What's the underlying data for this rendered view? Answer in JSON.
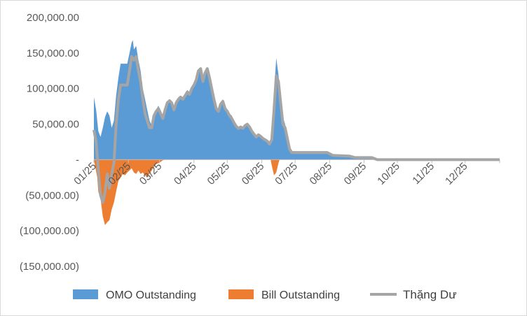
{
  "chart_data": {
    "type": "area",
    "title": "",
    "xlabel": "",
    "ylabel": "",
    "ylim": [
      -150000,
      200000
    ],
    "yticks": [
      200000,
      150000,
      100000,
      50000,
      0,
      -50000,
      -100000,
      -150000
    ],
    "ytick_labels": [
      "200,000.00",
      "150,000.00",
      "100,000.00",
      "50,000.00",
      "-",
      "(50,000.00)",
      "(100,000.00)",
      "(150,000.00)"
    ],
    "x_unit": "day_of_year_2025",
    "x_range": [
      0,
      365
    ],
    "xtick_positions": [
      0,
      31,
      59,
      90,
      120,
      151,
      181,
      212,
      243,
      273,
      304,
      334
    ],
    "xtick_labels": [
      "01/25",
      "02/25",
      "03/25",
      "04/25",
      "05/25",
      "06/25",
      "07/25",
      "08/25",
      "09/25",
      "10/25",
      "11/25",
      "12/25"
    ],
    "grid": false,
    "legend": "bottom",
    "series": [
      {
        "name": "OMO Outstanding",
        "kind": "area",
        "color": "#5b9bd5",
        "points": [
          [
            0,
            88000
          ],
          [
            2,
            70000
          ],
          [
            4,
            40000
          ],
          [
            6,
            32000
          ],
          [
            8,
            45000
          ],
          [
            10,
            60000
          ],
          [
            12,
            68000
          ],
          [
            14,
            62000
          ],
          [
            16,
            45000
          ],
          [
            18,
            55000
          ],
          [
            20,
            90000
          ],
          [
            22,
            115000
          ],
          [
            24,
            135000
          ],
          [
            27,
            135000
          ],
          [
            30,
            135000
          ],
          [
            32,
            150000
          ],
          [
            34,
            165000
          ],
          [
            35,
            168000
          ],
          [
            36,
            155000
          ],
          [
            38,
            160000
          ],
          [
            40,
            140000
          ],
          [
            42,
            125000
          ],
          [
            44,
            100000
          ],
          [
            46,
            85000
          ],
          [
            48,
            70000
          ],
          [
            50,
            55000
          ],
          [
            52,
            48000
          ],
          [
            54,
            62000
          ],
          [
            56,
            70000
          ],
          [
            58,
            76000
          ],
          [
            60,
            68000
          ],
          [
            62,
            60000
          ],
          [
            64,
            72000
          ],
          [
            66,
            80000
          ],
          [
            68,
            85000
          ],
          [
            70,
            80000
          ],
          [
            72,
            70000
          ],
          [
            74,
            80000
          ],
          [
            76,
            88000
          ],
          [
            78,
            90000
          ],
          [
            80,
            88000
          ],
          [
            82,
            92000
          ],
          [
            84,
            98000
          ],
          [
            86,
            95000
          ],
          [
            88,
            100000
          ],
          [
            90,
            105000
          ],
          [
            92,
            112000
          ],
          [
            94,
            125000
          ],
          [
            96,
            130000
          ],
          [
            98,
            112000
          ],
          [
            100,
            125000
          ],
          [
            102,
            130000
          ],
          [
            104,
            120000
          ],
          [
            106,
            105000
          ],
          [
            108,
            90000
          ],
          [
            110,
            75000
          ],
          [
            112,
            70000
          ],
          [
            114,
            80000
          ],
          [
            116,
            85000
          ],
          [
            118,
            75000
          ],
          [
            120,
            70000
          ],
          [
            122,
            65000
          ],
          [
            124,
            62000
          ],
          [
            126,
            55000
          ],
          [
            128,
            48000
          ],
          [
            130,
            45000
          ],
          [
            132,
            48000
          ],
          [
            134,
            45000
          ],
          [
            136,
            50000
          ],
          [
            138,
            52000
          ],
          [
            140,
            48000
          ],
          [
            142,
            42000
          ],
          [
            144,
            38000
          ],
          [
            146,
            34000
          ],
          [
            148,
            36000
          ],
          [
            150,
            35000
          ],
          [
            152,
            32000
          ],
          [
            154,
            30000
          ],
          [
            156,
            28000
          ],
          [
            158,
            25000
          ],
          [
            160,
            30000
          ],
          [
            162,
            95000
          ],
          [
            164,
            143000
          ],
          [
            166,
            120000
          ],
          [
            168,
            90000
          ],
          [
            170,
            60000
          ],
          [
            172,
            50000
          ],
          [
            174,
            35000
          ],
          [
            176,
            20000
          ],
          [
            178,
            12000
          ],
          [
            185,
            12000
          ],
          [
            200,
            12000
          ],
          [
            210,
            12000
          ],
          [
            215,
            7000
          ],
          [
            230,
            6000
          ],
          [
            235,
            4000
          ],
          [
            250,
            4000
          ],
          [
            255,
            1000
          ],
          [
            365,
            1000
          ]
        ]
      },
      {
        "name": "Bill Outstanding",
        "kind": "area",
        "color": "#ed7d31",
        "points": [
          [
            0,
            0
          ],
          [
            3,
            -25000
          ],
          [
            4,
            -45000
          ],
          [
            6,
            -55000
          ],
          [
            8,
            -80000
          ],
          [
            10,
            -92000
          ],
          [
            12,
            -88000
          ],
          [
            14,
            -85000
          ],
          [
            16,
            -70000
          ],
          [
            18,
            -60000
          ],
          [
            20,
            -45000
          ],
          [
            22,
            -30000
          ],
          [
            24,
            -25000
          ],
          [
            26,
            -20000
          ],
          [
            28,
            -22000
          ],
          [
            30,
            -18000
          ],
          [
            32,
            -15000
          ],
          [
            34,
            -12000
          ],
          [
            36,
            -18000
          ],
          [
            38,
            -20000
          ],
          [
            40,
            -15000
          ],
          [
            42,
            -20000
          ],
          [
            44,
            -18000
          ],
          [
            46,
            -22000
          ],
          [
            48,
            -25000
          ],
          [
            50,
            -20000
          ],
          [
            52,
            -15000
          ],
          [
            54,
            -10000
          ],
          [
            56,
            -6000
          ],
          [
            58,
            -5000
          ],
          [
            60,
            -3000
          ],
          [
            62,
            -1000
          ],
          [
            64,
            0
          ],
          [
            159,
            0
          ],
          [
            160,
            -8000
          ],
          [
            162,
            -22000
          ],
          [
            164,
            -18000
          ],
          [
            166,
            -5000
          ],
          [
            167,
            0
          ],
          [
            365,
            0
          ]
        ]
      },
      {
        "name": "Thặng Dư",
        "kind": "line",
        "color": "#a5a5a5",
        "points": [
          [
            0,
            42000
          ],
          [
            2,
            25000
          ],
          [
            4,
            -15000
          ],
          [
            6,
            -50000
          ],
          [
            8,
            -60000
          ],
          [
            10,
            -45000
          ],
          [
            12,
            -20000
          ],
          [
            14,
            -40000
          ],
          [
            16,
            -20000
          ],
          [
            18,
            -5000
          ],
          [
            20,
            50000
          ],
          [
            22,
            85000
          ],
          [
            24,
            105000
          ],
          [
            26,
            105000
          ],
          [
            28,
            105000
          ],
          [
            30,
            105000
          ],
          [
            32,
            125000
          ],
          [
            34,
            145000
          ],
          [
            36,
            140000
          ],
          [
            38,
            145000
          ],
          [
            40,
            125000
          ],
          [
            42,
            110000
          ],
          [
            44,
            85000
          ],
          [
            46,
            65000
          ],
          [
            48,
            55000
          ],
          [
            50,
            45000
          ],
          [
            52,
            45000
          ],
          [
            54,
            62000
          ],
          [
            56,
            68000
          ],
          [
            58,
            72000
          ],
          [
            60,
            65000
          ],
          [
            62,
            58000
          ],
          [
            64,
            70000
          ],
          [
            66,
            80000
          ],
          [
            68,
            83000
          ],
          [
            70,
            80000
          ],
          [
            72,
            70000
          ],
          [
            74,
            80000
          ],
          [
            76,
            85000
          ],
          [
            78,
            88000
          ],
          [
            80,
            85000
          ],
          [
            82,
            90000
          ],
          [
            84,
            95000
          ],
          [
            86,
            92000
          ],
          [
            88,
            100000
          ],
          [
            90,
            105000
          ],
          [
            92,
            112000
          ],
          [
            94,
            125000
          ],
          [
            96,
            128000
          ],
          [
            98,
            110000
          ],
          [
            100,
            122000
          ],
          [
            102,
            128000
          ],
          [
            104,
            115000
          ],
          [
            106,
            100000
          ],
          [
            108,
            85000
          ],
          [
            110,
            72000
          ],
          [
            112,
            68000
          ],
          [
            114,
            78000
          ],
          [
            116,
            82000
          ],
          [
            118,
            72000
          ],
          [
            120,
            68000
          ],
          [
            122,
            62000
          ],
          [
            124,
            58000
          ],
          [
            126,
            52000
          ],
          [
            128,
            47000
          ],
          [
            130,
            44000
          ],
          [
            132,
            46000
          ],
          [
            134,
            44000
          ],
          [
            136,
            48000
          ],
          [
            138,
            50000
          ],
          [
            140,
            46000
          ],
          [
            142,
            40000
          ],
          [
            144,
            36000
          ],
          [
            146,
            32000
          ],
          [
            148,
            35000
          ],
          [
            150,
            33000
          ],
          [
            152,
            30000
          ],
          [
            154,
            28000
          ],
          [
            156,
            26000
          ],
          [
            158,
            22000
          ],
          [
            160,
            28000
          ],
          [
            162,
            70000
          ],
          [
            164,
            118000
          ],
          [
            166,
            110000
          ],
          [
            168,
            80000
          ],
          [
            170,
            50000
          ],
          [
            172,
            45000
          ],
          [
            174,
            30000
          ],
          [
            176,
            15000
          ],
          [
            178,
            10000
          ],
          [
            185,
            10000
          ],
          [
            200,
            10000
          ],
          [
            210,
            10000
          ],
          [
            215,
            6000
          ],
          [
            230,
            5000
          ],
          [
            235,
            3000
          ],
          [
            250,
            3000
          ],
          [
            255,
            0
          ],
          [
            365,
            0
          ]
        ]
      }
    ]
  }
}
